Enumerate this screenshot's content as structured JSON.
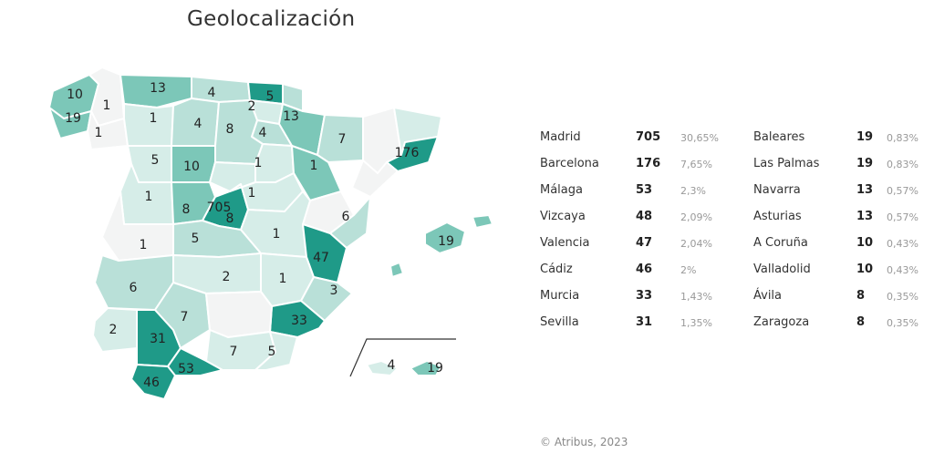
{
  "title": "Geolocalización",
  "colors": {
    "high": "#1f9a88",
    "mid": "#7cc7b8",
    "low": "#b9e0d8",
    "lowest": "#d6ede8",
    "none": "#f3f4f4"
  },
  "map_labels": [
    "10",
    "13",
    "4",
    "5",
    "1",
    "19",
    "1",
    "2",
    "13",
    "1",
    "4",
    "8",
    "4",
    "7",
    "176",
    "5",
    "10",
    "1",
    "1",
    "8",
    "1",
    "705",
    "1",
    "8",
    "6",
    "1",
    "5",
    "1",
    "19",
    "47",
    "2",
    "1",
    "6",
    "3",
    "33",
    "7",
    "2",
    "31",
    "7",
    "5",
    "53",
    "46",
    "4",
    "19"
  ],
  "table_left": [
    {
      "name": "Madrid",
      "count": "705",
      "pct": "30,65%"
    },
    {
      "name": "Barcelona",
      "count": "176",
      "pct": "7,65%"
    },
    {
      "name": "Málaga",
      "count": "53",
      "pct": "2,3%"
    },
    {
      "name": "Vizcaya",
      "count": "48",
      "pct": "2,09%"
    },
    {
      "name": "Valencia",
      "count": "47",
      "pct": "2,04%"
    },
    {
      "name": "Cádiz",
      "count": "46",
      "pct": "2%"
    },
    {
      "name": "Murcia",
      "count": "33",
      "pct": "1,43%"
    },
    {
      "name": "Sevilla",
      "count": "31",
      "pct": "1,35%"
    }
  ],
  "table_right": [
    {
      "name": "Baleares",
      "count": "19",
      "pct": "0,83%"
    },
    {
      "name": "Las Palmas",
      "count": "19",
      "pct": "0,83%"
    },
    {
      "name": "Navarra",
      "count": "13",
      "pct": "0,57%"
    },
    {
      "name": "Asturias",
      "count": "13",
      "pct": "0,57%"
    },
    {
      "name": "A Coruña",
      "count": "10",
      "pct": "0,43%"
    },
    {
      "name": "Valladolid",
      "count": "10",
      "pct": "0,43%"
    },
    {
      "name": "Ávila",
      "count": "8",
      "pct": "0,35%"
    },
    {
      "name": "Zaragoza",
      "count": "8",
      "pct": "0,35%"
    }
  ],
  "footer": "© Atribus, 2023"
}
